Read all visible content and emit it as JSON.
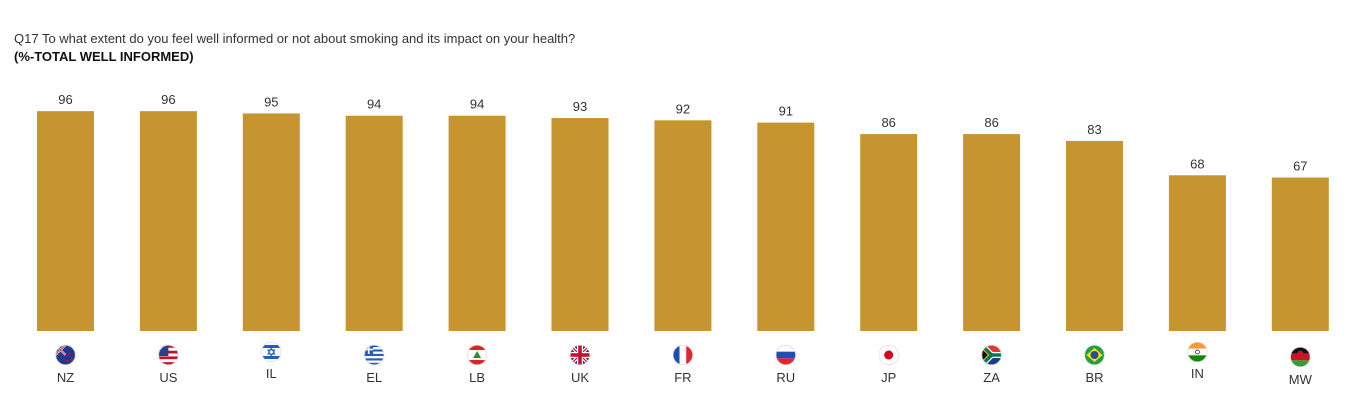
{
  "header": {
    "question": "Q17 To what extent do you feel well informed or not about smoking and its impact on your health?",
    "subtitle": "(%-TOTAL WELL INFORMED)"
  },
  "chart_data": {
    "type": "bar",
    "title": "Q17 To what extent do you feel well informed or not about smoking and its impact on your health?",
    "subtitle": "(%-TOTAL WELL INFORMED)",
    "categories": [
      "NZ",
      "US",
      "IL",
      "EL",
      "LB",
      "UK",
      "FR",
      "RU",
      "JP",
      "ZA",
      "BR",
      "IN",
      "MW"
    ],
    "values": [
      96,
      96,
      95,
      94,
      94,
      93,
      92,
      91,
      86,
      86,
      83,
      68,
      67
    ],
    "ylim": [
      0,
      100
    ],
    "grid": false,
    "legend": "none",
    "bar_color": "#C6952F",
    "flag_icons": [
      "new-zealand-flag-icon",
      "united-states-flag-icon",
      "israel-flag-icon",
      "greece-flag-icon",
      "lebanon-flag-icon",
      "united-kingdom-flag-icon",
      "france-flag-icon",
      "russia-flag-icon",
      "japan-flag-icon",
      "south-africa-flag-icon",
      "brazil-flag-icon",
      "india-flag-icon",
      "malawi-flag-icon"
    ]
  }
}
